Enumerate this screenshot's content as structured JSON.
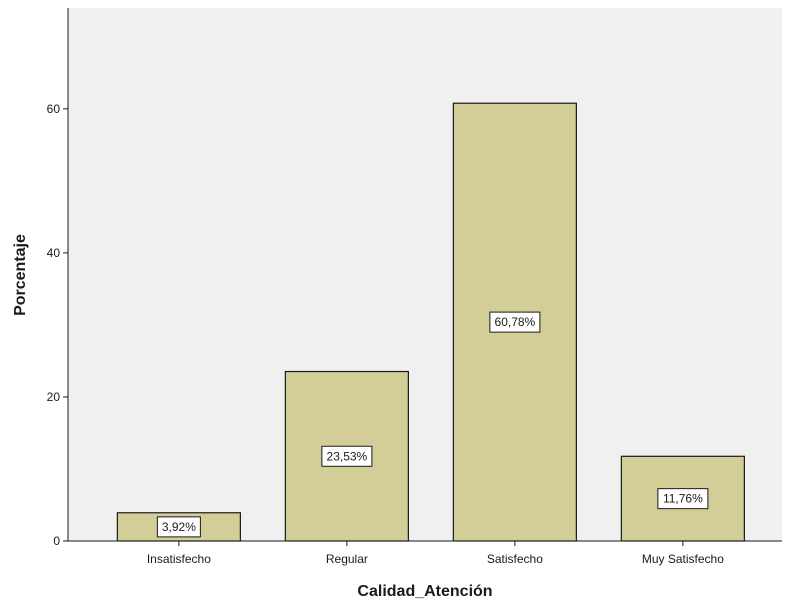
{
  "chart_data": {
    "type": "bar",
    "title": "",
    "xlabel": "Calidad_Atención",
    "ylabel": "Porcentaje",
    "categories": [
      "Insatisfecho",
      "Regular",
      "Satisfecho",
      "Muy Satisfecho"
    ],
    "values": [
      3.92,
      23.53,
      60.78,
      11.76
    ],
    "data_labels": [
      "3,92%",
      "23,53%",
      "60,78%",
      "11,76%"
    ],
    "ylim": [
      0,
      74
    ],
    "yticks": [
      0,
      20,
      40,
      60
    ],
    "ytick_labels": [
      "0",
      "20",
      "40",
      "60"
    ],
    "grid": false,
    "legend": "none",
    "colors": {
      "plot_background": "#f0f0f0",
      "bar_fill": "#d3ce98",
      "bar_stroke": "#1a1a1a",
      "axis": "#1a1a1a",
      "label_box": "#ffffff"
    }
  }
}
